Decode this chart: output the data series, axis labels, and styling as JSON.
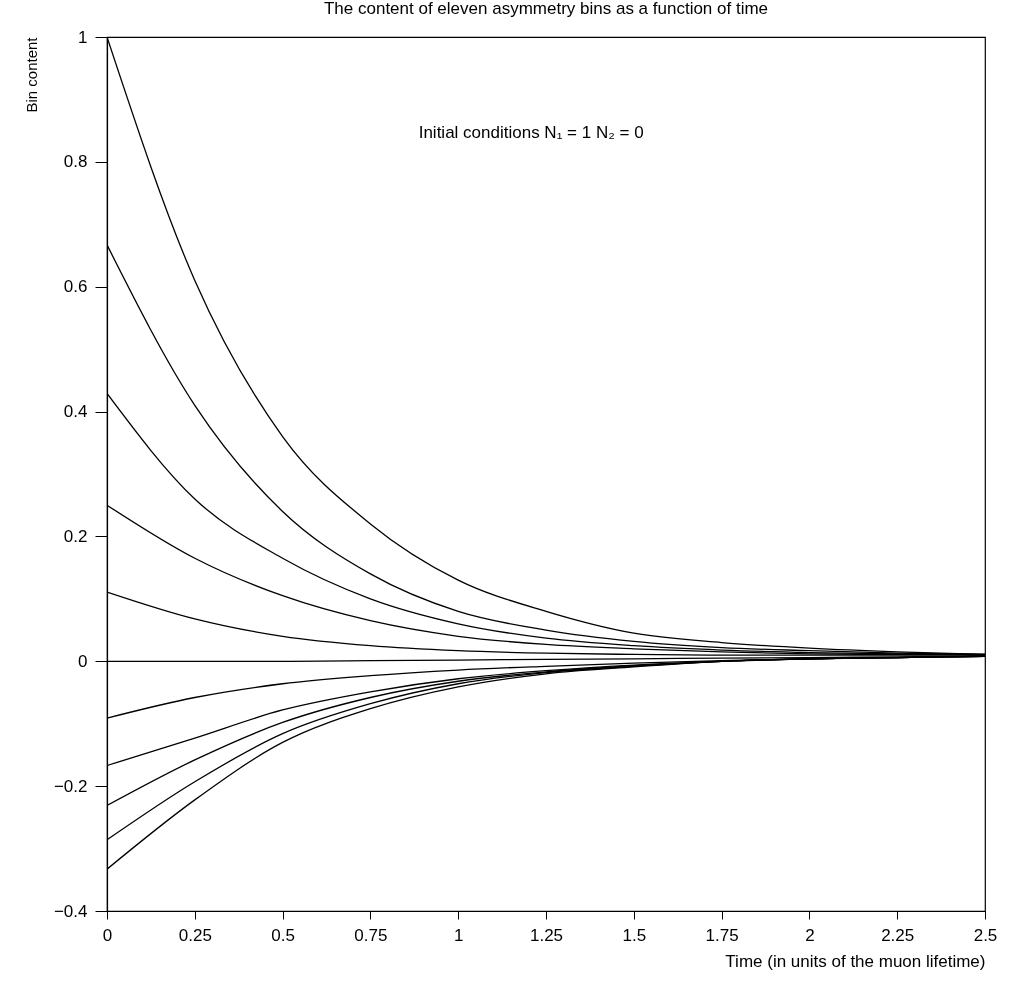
{
  "chart_data": {
    "type": "line",
    "title": "The content of eleven asymmetry bins as a function of time",
    "xlabel": "Time (in units of the muon lifetime)",
    "ylabel": "Bin content",
    "annotations": [
      "Initial conditions N₁ = 1  N₂ = 0"
    ],
    "x": [
      0,
      0.25,
      0.5,
      0.75,
      1,
      1.25,
      1.5,
      1.75,
      2,
      2.25,
      2.5
    ],
    "series": [
      {
        "color": "#000000",
        "values": [
          1,
          0.61,
          0.36,
          0.22,
          0.13,
          0.08,
          0.045,
          0.03,
          0.021,
          0.015,
          0.011
        ]
      },
      {
        "color": "#000000",
        "values": [
          0.667,
          0.41,
          0.24,
          0.14,
          0.08,
          0.05,
          0.032,
          0.022,
          0.017,
          0.013,
          0.011
        ]
      },
      {
        "color": "#000000",
        "values": [
          0.429,
          0.26,
          0.165,
          0.1,
          0.06,
          0.037,
          0.025,
          0.018,
          0.014,
          0.012,
          0.011
        ]
      },
      {
        "color": "#000000",
        "values": [
          0.25,
          0.165,
          0.105,
          0.065,
          0.04,
          0.027,
          0.02,
          0.015,
          0.012,
          0.011,
          0.01
        ]
      },
      {
        "color": "#000000",
        "values": [
          0.111,
          0.068,
          0.04,
          0.025,
          0.017,
          0.013,
          0.011,
          0.01,
          0.01,
          0.01,
          0.01
        ]
      },
      {
        "color": "#000000",
        "values": [
          0,
          0,
          0,
          0.001,
          0.002,
          0.003,
          0.004,
          0.005,
          0.006,
          0.007,
          0.008
        ]
      },
      {
        "color": "#000000",
        "values": [
          -0.091,
          -0.058,
          -0.036,
          -0.023,
          -0.014,
          -0.008,
          -0.003,
          0.001,
          0.004,
          0.006,
          0.008
        ]
      },
      {
        "color": "#000000",
        "values": [
          -0.167,
          -0.123,
          -0.078,
          -0.049,
          -0.028,
          -0.015,
          -0.006,
          0,
          0.004,
          0.006,
          0.008
        ]
      },
      {
        "color": "#000000",
        "values": [
          -0.231,
          -0.158,
          -0.098,
          -0.058,
          -0.032,
          -0.017,
          -0.007,
          0,
          0.004,
          0.006,
          0.008
        ]
      },
      {
        "color": "#000000",
        "values": [
          -0.286,
          -0.193,
          -0.116,
          -0.068,
          -0.036,
          -0.018,
          -0.008,
          0,
          0.004,
          0.006,
          0.008
        ]
      },
      {
        "color": "#000000",
        "values": [
          -0.333,
          -0.222,
          -0.13,
          -0.076,
          -0.041,
          -0.02,
          -0.009,
          0,
          0.004,
          0.006,
          0.008
        ]
      }
    ],
    "xlim": [
      0,
      2.5
    ],
    "xticks": [
      0,
      0.25,
      0.5,
      0.75,
      1,
      1.25,
      1.5,
      1.75,
      2,
      2.25,
      2.5
    ],
    "ylim": [
      -0.4,
      1
    ],
    "yticks": [
      {
        "value": -0.4,
        "label": "−0.4"
      },
      {
        "value": -0.2,
        "label": "−0.2"
      },
      0,
      0.2,
      0.4,
      0.6,
      0.8,
      1
    ],
    "grid": false,
    "legend": false,
    "marker": "none",
    "line_style": "solid"
  }
}
